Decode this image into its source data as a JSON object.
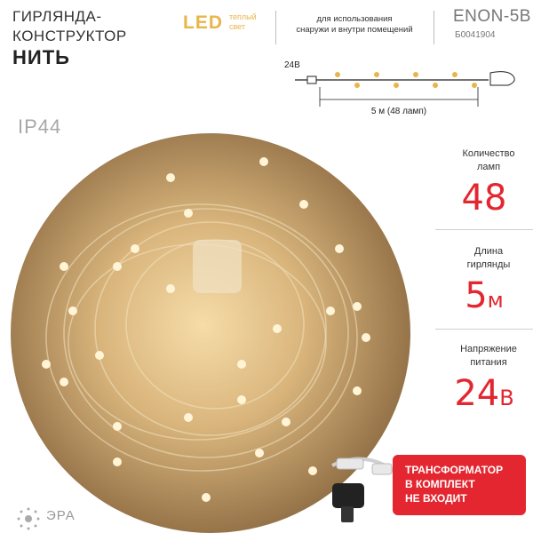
{
  "header": {
    "title_line1": "ГИРЛЯНДА-",
    "title_line2": "КОНСТРУКТОР",
    "title_bold": "НИТЬ",
    "led": "LED",
    "warm_line1": "теплый",
    "warm_line2": "свет",
    "usage_line1": "для использования",
    "usage_line2": "снаружи и внутри помещений",
    "model": "ENON-5B",
    "sku": "Б0041904"
  },
  "diagram": {
    "voltage": "24В",
    "length_label": "5 м (48 ламп)"
  },
  "ip_rating": "IP44",
  "specs": {
    "lamps_label_1": "Количество",
    "lamps_label_2": "ламп",
    "lamps_value": "48",
    "length_label_1": "Длина",
    "length_label_2": "гирлянды",
    "length_value": "5",
    "length_unit": "м",
    "voltage_label_1": "Напряжение",
    "voltage_label_2": "питания",
    "voltage_value": "24",
    "voltage_unit": "В"
  },
  "warning": {
    "line1": "ТРАНСФОРМАТОР",
    "line2": "В КОМПЛЕКТ",
    "line3": "НЕ ВХОДИТ"
  },
  "brand": "ЭРА",
  "colors": {
    "accent": "#e3262f",
    "led": "#e8b54a"
  }
}
